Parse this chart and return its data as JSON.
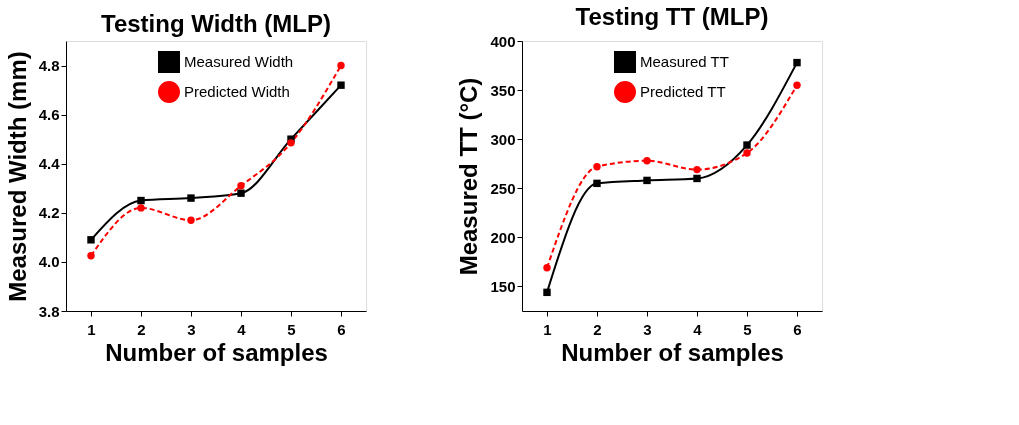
{
  "chart_data": [
    {
      "type": "line",
      "title": "Testing Width (MLP)",
      "xlabel": "Number of samples",
      "ylabel": "Measured Width (mm)",
      "x": [
        1,
        2,
        3,
        4,
        5,
        6
      ],
      "xlim": [
        0.5,
        6.5
      ],
      "xticks": [
        1,
        2,
        3,
        4,
        5,
        6
      ],
      "ylim": [
        3.8,
        4.9
      ],
      "yticks": [
        {
          "value": 3.8,
          "label": "3.8"
        },
        {
          "value": 4.0,
          "label": "4.0"
        },
        {
          "value": 4.2,
          "label": "4.2"
        },
        {
          "value": 4.4,
          "label": "4.4"
        },
        {
          "value": 4.6,
          "label": "4.6"
        },
        {
          "value": 4.8,
          "label": "4.8"
        }
      ],
      "grid": false,
      "legend": "top",
      "series": [
        {
          "name": "Measured Width",
          "color": "#000000",
          "marker": "square",
          "line_style": "solid",
          "values": [
            4.09,
            4.25,
            4.26,
            4.28,
            4.5,
            4.72
          ]
        },
        {
          "name": "Predicted Width",
          "color": "#ff0000",
          "marker": "circle",
          "line_style": "dashed",
          "values": [
            4.025,
            4.22,
            4.17,
            4.31,
            4.485,
            4.8
          ]
        }
      ]
    },
    {
      "type": "line",
      "title": "Testing TT (MLP)",
      "xlabel": "Number of samples",
      "ylabel": "Measured TT (°C)",
      "x": [
        1,
        2,
        3,
        4,
        5,
        6
      ],
      "xlim": [
        0.5,
        6.5
      ],
      "xticks": [
        1,
        2,
        3,
        4,
        5,
        6
      ],
      "ylim": [
        125,
        400
      ],
      "yticks": [
        150,
        200,
        250,
        300,
        350,
        400
      ],
      "grid": false,
      "legend": "top",
      "series": [
        {
          "name": "Measured TT",
          "color": "#000000",
          "marker": "square",
          "line_style": "solid",
          "values": [
            144,
            255,
            258,
            260,
            294,
            378
          ]
        },
        {
          "name": "Predicted TT",
          "color": "#ff0000",
          "marker": "circle",
          "line_style": "dashed",
          "values": [
            169,
            272,
            278,
            269,
            286,
            355
          ]
        }
      ]
    }
  ]
}
